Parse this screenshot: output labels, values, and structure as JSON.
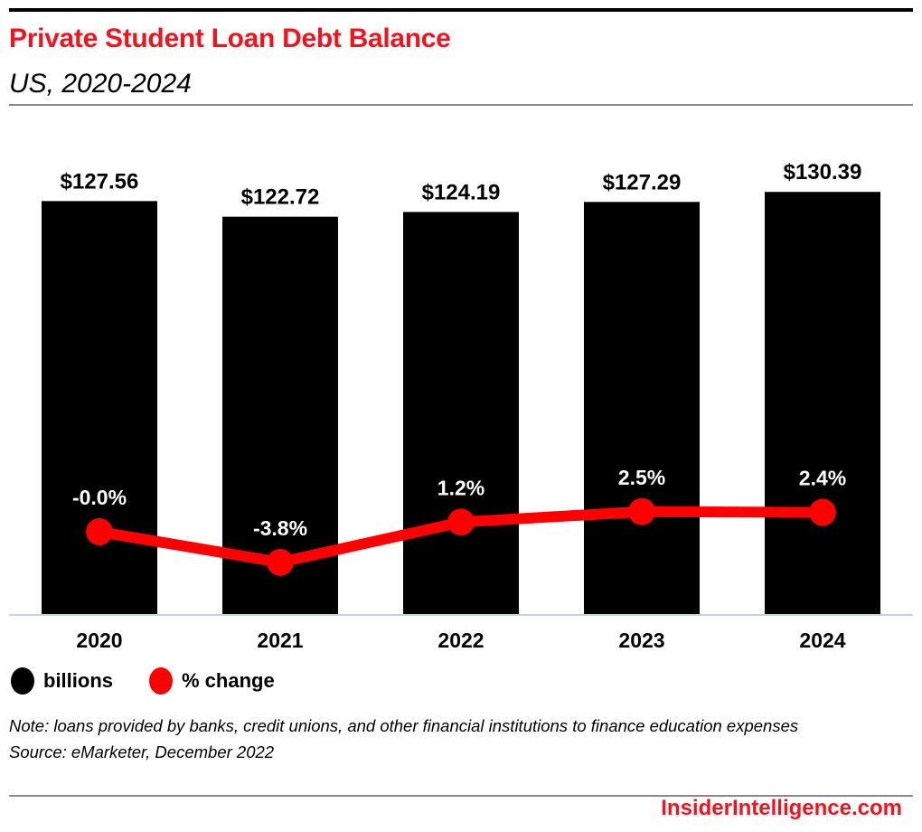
{
  "chart_data": {
    "type": "bar",
    "title": "Private Student Loan Debt Balance",
    "subtitle": "US, 2020-2024",
    "categories": [
      "2020",
      "2021",
      "2022",
      "2023",
      "2024"
    ],
    "series": [
      {
        "name": "billions",
        "type": "bar",
        "values": [
          127.56,
          122.72,
          124.19,
          127.29,
          130.39
        ],
        "labels": [
          "$127.56",
          "$122.72",
          "$124.19",
          "$127.29",
          "$130.39"
        ],
        "color": "#000000"
      },
      {
        "name": "% change",
        "type": "line",
        "values": [
          0.0,
          -3.8,
          1.2,
          2.5,
          2.4
        ],
        "labels": [
          "-0.0%",
          "-3.8%",
          "1.2%",
          "2.5%",
          "2.4%"
        ],
        "color": "#ff0000"
      }
    ],
    "ylim": [
      0,
      150
    ],
    "y2lim": [
      -7,
      11
    ],
    "grid": false,
    "legend": "bottom-left"
  },
  "note": "Note: loans provided by banks, credit unions, and other financial institutions to finance education expenses",
  "source": "Source: eMarketer, December 2022",
  "logo": "InsiderIntelligence.com"
}
